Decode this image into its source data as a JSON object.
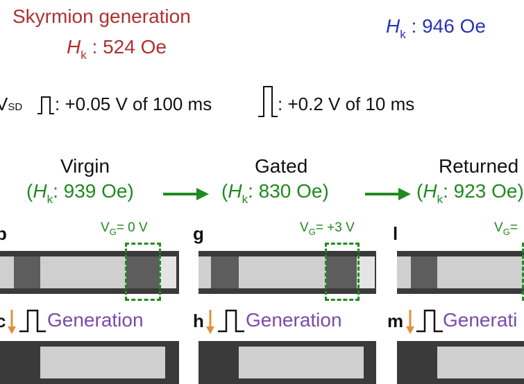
{
  "header": {
    "title": "Skyrmion generation",
    "hk_left": {
      "symbol": "H",
      "sub": "k",
      "value": ": 524 Oe"
    },
    "hk_right": {
      "symbol": "H",
      "sub": "k",
      "value": ": 946 Oe"
    }
  },
  "pulses": {
    "vsd_prefix": "V",
    "vsd_sub": "SD",
    "pulse1": ": +0.05 V of 100 ms",
    "pulse2": ": +0.2 V of 10 ms"
  },
  "stages": [
    {
      "label": "Virgin",
      "hk": "939 Oe"
    },
    {
      "label": "Gated",
      "hk": "830 Oe"
    },
    {
      "label": "Returned",
      "hk": "923 Oe"
    }
  ],
  "panels": [
    {
      "letter": "b",
      "vg": "= 0 V"
    },
    {
      "letter": "g",
      "vg": "= +3 V"
    },
    {
      "letter": "l",
      "vg": "="
    }
  ],
  "gen_rows": [
    {
      "letter": "c",
      "label": "Generation"
    },
    {
      "letter": "h",
      "label": "Generation"
    },
    {
      "letter": "m",
      "label": "Generati"
    }
  ],
  "colors": {
    "red": "#b03030",
    "blue": "#2a32b8",
    "green": "#1f8a1f",
    "purple": "#7b4aa8",
    "orange": "#e0903a"
  }
}
